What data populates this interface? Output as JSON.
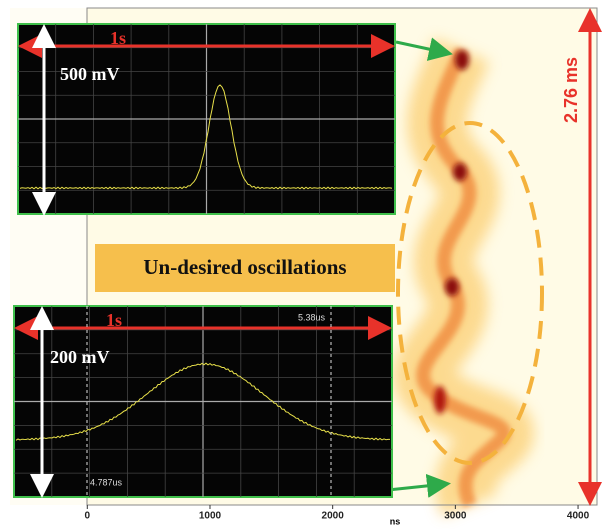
{
  "main_plot": {
    "xlim": [
      -630,
      4130
    ],
    "xticks": [
      0,
      1000,
      2000,
      3000,
      4000
    ],
    "x_label": "ns",
    "time_span": "2.76 ms",
    "annotation": "Un-desired oscillations"
  },
  "insets": [
    {
      "time_label": "1s",
      "voltage_label": "500 mV"
    },
    {
      "time_label": "1s",
      "voltage_label": "200 mV",
      "cursor_labels": [
        "5.38us",
        "4.787us"
      ]
    }
  ]
}
